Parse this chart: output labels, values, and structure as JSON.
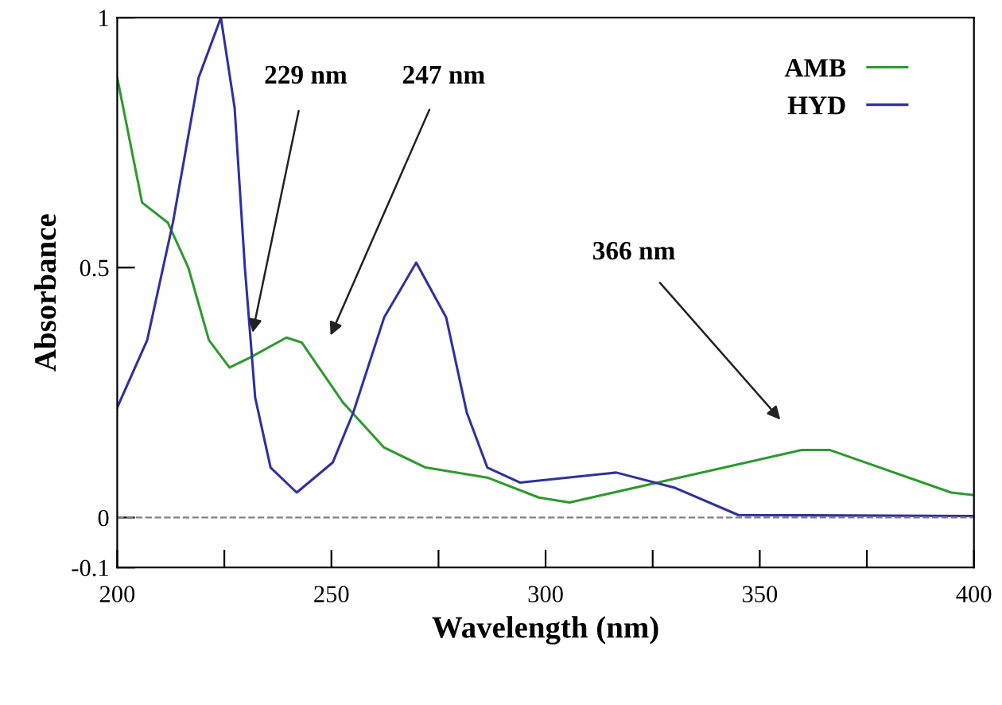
{
  "chart_data": {
    "type": "line",
    "xlabel": "Wavelength (nm)",
    "ylabel": "Absorbance",
    "xlim": [
      200,
      400
    ],
    "ylim": [
      -0.1,
      1
    ],
    "xticks": [
      200,
      {
        "value": 225,
        "label": null
      },
      250,
      {
        "value": 275,
        "label": null
      },
      300,
      {
        "value": 325,
        "label": null
      },
      350,
      {
        "value": 375,
        "label": null
      },
      400
    ],
    "yticks": [
      -0.1,
      0,
      0.5,
      1
    ],
    "grid": false,
    "legend": "top right",
    "line_style": "solid",
    "marker": "none",
    "ref_lines": [
      {
        "axis": "y",
        "value": 0,
        "label": null,
        "color": "#808080",
        "line_style": "dashed"
      }
    ],
    "annotations": [
      {
        "text": "229 nm",
        "x": 231.6,
        "y": 0.37
      },
      "247 nm",
      "366 nm"
    ],
    "series": [
      {
        "name": "AMB",
        "color": "#2e9a2e",
        "x": [
          200,
          205.8,
          211.8,
          216.6,
          221.4,
          226.2,
          231,
          239.5,
          243.1,
          252.7,
          262.3,
          272,
          286.4,
          298.4,
          305.6,
          326.1,
          359.8,
          366.4,
          394.7,
          400
        ],
        "values": [
          0.88,
          0.63,
          0.59,
          0.5,
          0.355,
          0.3,
          0.32,
          0.36,
          0.35,
          0.23,
          0.14,
          0.1,
          0.08,
          0.04,
          0.03,
          0.07,
          0.135,
          0.135,
          0.05,
          0.045
        ]
      },
      {
        "name": "HYD",
        "color": "#3030a0",
        "x": [
          200,
          207,
          213,
          219,
          224.2,
          227.4,
          229.8,
          232.2,
          235.8,
          241.9,
          250.3,
          255.1,
          262.3,
          269.8,
          276.8,
          281.6,
          286.4,
          294,
          316.5,
          330,
          345,
          400
        ],
        "values": [
          0.22,
          0.355,
          0.59,
          0.88,
          1.0,
          0.82,
          0.5,
          0.24,
          0.1,
          0.05,
          0.11,
          0.21,
          0.4,
          0.51,
          0.4,
          0.21,
          0.1,
          0.07,
          0.09,
          0.06,
          0.005,
          0.003
        ]
      }
    ]
  }
}
